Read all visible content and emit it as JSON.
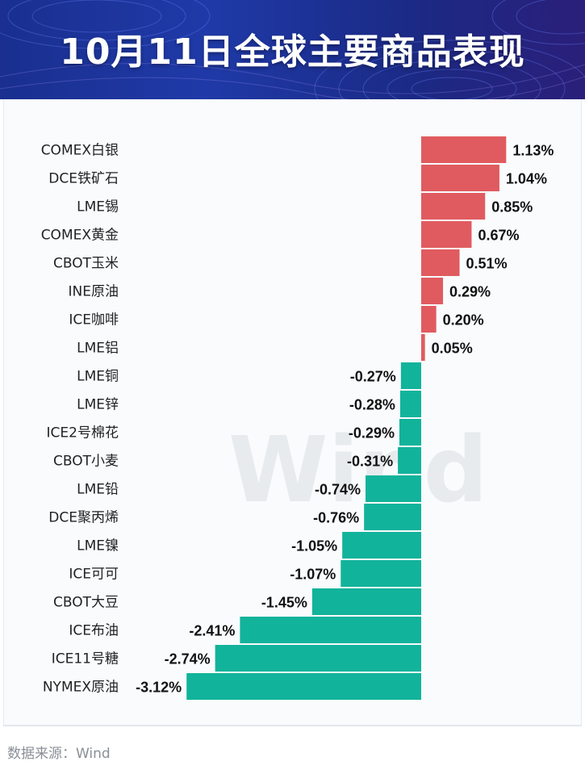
{
  "header": {
    "title": "10月11日全球主要商品表现"
  },
  "footer": {
    "source": "数据来源：Wind"
  },
  "watermark": "Wind",
  "colors": {
    "positive": "#e05b5f",
    "negative": "#12b39b",
    "header_bg": "#1f3aa8"
  },
  "chart_data": {
    "type": "bar",
    "orientation": "horizontal",
    "title": "10月11日全球主要商品表现",
    "unit": "%",
    "categories": [
      "COMEX白银",
      "DCE铁矿石",
      "LME锡",
      "COMEX黄金",
      "CBOT玉米",
      "INE原油",
      "ICE咖啡",
      "LME铝",
      "LME铜",
      "LME锌",
      "ICE2号棉花",
      "CBOT小麦",
      "LME铅",
      "DCE聚丙烯",
      "LME镍",
      "ICE可可",
      "CBOT大豆",
      "ICE布油",
      "ICE11号糖",
      "NYMEX原油"
    ],
    "values": [
      1.13,
      1.04,
      0.85,
      0.67,
      0.51,
      0.29,
      0.2,
      0.05,
      -0.27,
      -0.28,
      -0.29,
      -0.31,
      -0.74,
      -0.76,
      -1.05,
      -1.07,
      -1.45,
      -2.41,
      -2.74,
      -3.12
    ],
    "value_labels": [
      "1.13%",
      "1.04%",
      "0.85%",
      "0.67%",
      "0.51%",
      "0.29%",
      "0.20%",
      "0.05%",
      "-0.27%",
      "-0.28%",
      "-0.29%",
      "-0.31%",
      "-0.74%",
      "-0.76%",
      "-1.05%",
      "-1.07%",
      "-1.45%",
      "-2.41%",
      "-2.74%",
      "-3.12%"
    ],
    "xlim": [
      -3.12,
      1.13
    ],
    "grid": false,
    "legend": "none"
  }
}
